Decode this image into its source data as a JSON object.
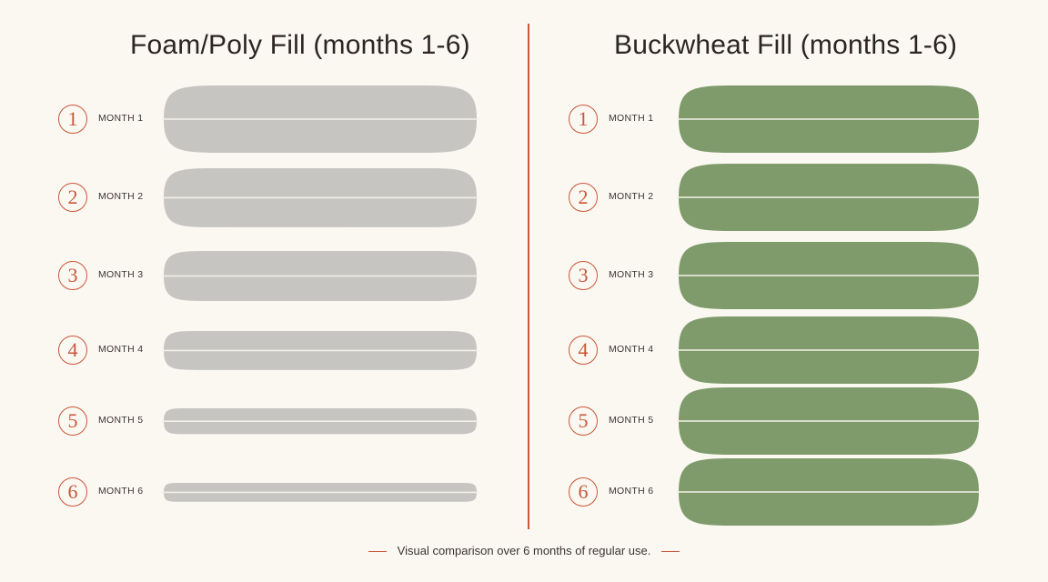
{
  "panels": [
    {
      "title": "Foam/Poly Fill (months 1-6)",
      "fill_color": "#c6c5c2",
      "rows": [
        {
          "number": "1",
          "label": "MONTH 1",
          "loft": 1.0
        },
        {
          "number": "2",
          "label": "MONTH 2",
          "loft": 0.88
        },
        {
          "number": "3",
          "label": "MONTH 3",
          "loft": 0.75
        },
        {
          "number": "4",
          "label": "MONTH 4",
          "loft": 0.59
        },
        {
          "number": "5",
          "label": "MONTH 5",
          "loft": 0.4
        },
        {
          "number": "6",
          "label": "MONTH 6",
          "loft": 0.3
        }
      ]
    },
    {
      "title": "Buckwheat Fill (months 1-6)",
      "fill_color": "#7f9b6b",
      "rows": [
        {
          "number": "1",
          "label": "MONTH 1",
          "loft": 1.0
        },
        {
          "number": "2",
          "label": "MONTH 2",
          "loft": 1.0
        },
        {
          "number": "3",
          "label": "MONTH 3",
          "loft": 1.0
        },
        {
          "number": "4",
          "label": "MONTH 4",
          "loft": 1.0
        },
        {
          "number": "5",
          "label": "MONTH 5",
          "loft": 1.0
        },
        {
          "number": "6",
          "label": "MONTH 6",
          "loft": 1.0
        }
      ]
    }
  ],
  "footer": "Visual comparison over 6 months of regular use.",
  "colors": {
    "accent": "#c9573b",
    "seam": "#f4f1ea",
    "background": "#fbf8f2"
  }
}
